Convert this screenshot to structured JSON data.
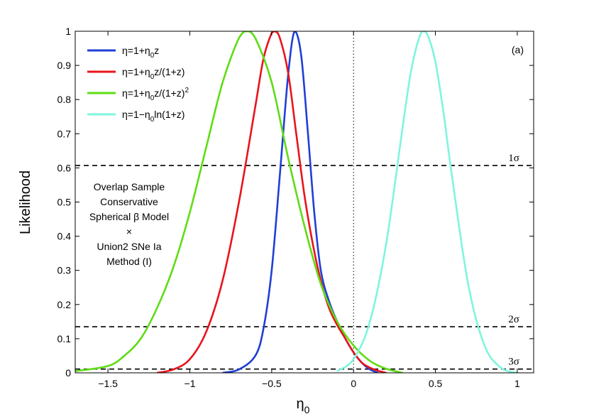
{
  "chart_data": {
    "type": "line",
    "panel_label": "(a)",
    "xlabel": "η",
    "xlabel_sub": "0",
    "ylabel": "Likelihood",
    "xlim": [
      -1.7,
      1.1
    ],
    "ylim": [
      0,
      1
    ],
    "x_ticks": [
      -1.5,
      -1,
      -0.5,
      0,
      0.5,
      1
    ],
    "x_tick_labels": [
      "−1.5",
      "−1",
      "−0.5",
      "0",
      "0.5",
      "1"
    ],
    "y_ticks": [
      0,
      0.1,
      0.2,
      0.3,
      0.4,
      0.5,
      0.6,
      0.7,
      0.8,
      0.9,
      1
    ],
    "y_tick_labels": [
      "0",
      "0.1",
      "0.2",
      "0.3",
      "0.4",
      "0.5",
      "0.6",
      "0.7",
      "0.8",
      "0.9",
      "1"
    ],
    "grid": false,
    "legend_position": "top-left",
    "vertical_reference": {
      "x": 0,
      "style": "dotted"
    },
    "sigma_lines": [
      {
        "label": "1σ",
        "y": 0.607
      },
      {
        "label": "2σ",
        "y": 0.135
      },
      {
        "label": "3σ",
        "y": 0.011
      }
    ],
    "annotation_lines": [
      "Overlap Sample",
      "Conservative",
      "Spherical β Model",
      "×",
      "Union2 SNe Ia",
      "Method (I)"
    ],
    "series": [
      {
        "name": "η=1+η₀z",
        "legend_parts": [
          [
            "η=1+η",
            ""
          ],
          [
            "0",
            "sub"
          ],
          [
            "z",
            ""
          ]
        ],
        "color": "#1f3fd6",
        "x": [
          -0.8,
          -0.7,
          -0.6,
          -0.55,
          -0.5,
          -0.45,
          -0.4,
          -0.36,
          -0.32,
          -0.28,
          -0.24,
          -0.2,
          -0.15,
          -0.1,
          -0.05,
          0.0,
          0.05,
          0.1,
          0.15
        ],
        "y": [
          0.0,
          0.01,
          0.05,
          0.13,
          0.3,
          0.58,
          0.87,
          1.0,
          0.93,
          0.71,
          0.47,
          0.3,
          0.21,
          0.15,
          0.1,
          0.06,
          0.03,
          0.01,
          0.0
        ]
      },
      {
        "name": "η=1+η₀z/(1+z)",
        "legend_parts": [
          [
            "η=1+η",
            ""
          ],
          [
            "0",
            "sub"
          ],
          [
            "z/(1+z)",
            ""
          ]
        ],
        "color": "#e8141b",
        "x": [
          -1.2,
          -1.1,
          -1.0,
          -0.9,
          -0.8,
          -0.7,
          -0.6,
          -0.55,
          -0.5,
          -0.48,
          -0.45,
          -0.4,
          -0.35,
          -0.3,
          -0.25,
          -0.2,
          -0.15,
          -0.1,
          -0.05,
          0.0,
          0.05,
          0.1,
          0.15,
          0.2
        ],
        "y": [
          0.0,
          0.01,
          0.04,
          0.12,
          0.27,
          0.5,
          0.78,
          0.92,
          0.995,
          1.0,
          0.98,
          0.88,
          0.7,
          0.52,
          0.38,
          0.27,
          0.19,
          0.14,
          0.1,
          0.06,
          0.03,
          0.015,
          0.006,
          0.0
        ]
      },
      {
        "name": "η=1+η₀z/(1+z)²",
        "legend_parts": [
          [
            "η=1+η",
            ""
          ],
          [
            "0",
            "sub"
          ],
          [
            "z/(1+z)",
            ""
          ],
          [
            "2",
            "sup"
          ]
        ],
        "color": "#5fdc14",
        "x": [
          -1.7,
          -1.5,
          -1.4,
          -1.3,
          -1.2,
          -1.1,
          -1.0,
          -0.9,
          -0.8,
          -0.7,
          -0.65,
          -0.6,
          -0.5,
          -0.4,
          -0.3,
          -0.2,
          -0.1,
          0.0,
          0.1,
          0.2,
          0.3
        ],
        "y": [
          0.005,
          0.02,
          0.05,
          0.1,
          0.19,
          0.31,
          0.47,
          0.66,
          0.85,
          0.98,
          1.0,
          0.98,
          0.85,
          0.63,
          0.43,
          0.26,
          0.15,
          0.08,
          0.035,
          0.012,
          0.0
        ]
      },
      {
        "name": "η=1−η₀ln(1+z)",
        "legend_parts": [
          [
            "η=1−η",
            ""
          ],
          [
            "0",
            "sub"
          ],
          [
            "ln(1+z)",
            ""
          ]
        ],
        "color": "#7ff5dd",
        "x": [
          -0.1,
          0.0,
          0.1,
          0.2,
          0.3,
          0.35,
          0.4,
          0.43,
          0.46,
          0.5,
          0.55,
          0.6,
          0.7,
          0.8,
          0.9,
          1.0
        ],
        "y": [
          0.005,
          0.04,
          0.15,
          0.38,
          0.72,
          0.88,
          0.98,
          1.0,
          0.98,
          0.91,
          0.76,
          0.58,
          0.26,
          0.08,
          0.015,
          0.0
        ]
      }
    ]
  }
}
